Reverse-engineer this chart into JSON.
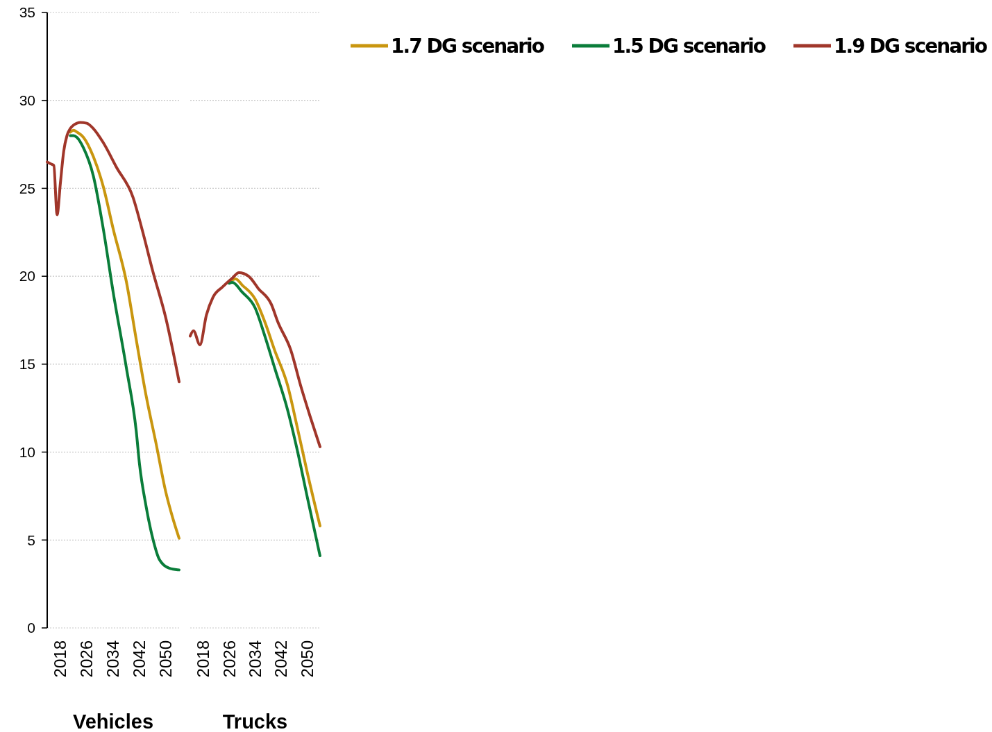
{
  "chart_data": [
    {
      "type": "line",
      "xlabel": "Vehicles",
      "xlim": [
        2014,
        2054
      ],
      "xticks": [
        2018,
        2026,
        2034,
        2042,
        2050
      ],
      "ylim": [
        0,
        35
      ],
      "yticks": [
        0,
        5,
        10,
        15,
        20,
        25,
        30,
        35
      ],
      "grid": "y",
      "legend": "top right",
      "line_style": "solid",
      "marker": "none",
      "series": [
        {
          "name": "1.7 DG scenario",
          "color": "#c9960f",
          "x": [
            2021,
            2022,
            2023,
            2025,
            2028,
            2031,
            2034,
            2038,
            2041,
            2044,
            2047,
            2050,
            2052,
            2054
          ],
          "values": [
            28.2,
            28.3,
            28.2,
            27.9,
            26.8,
            25.1,
            22.7,
            19.7,
            16.4,
            13.2,
            10.5,
            7.7,
            6.3,
            5.1
          ]
        },
        {
          "name": "1.5 DG scenario",
          "color": "#0a7d3a",
          "x": [
            2021,
            2022,
            2023,
            2025,
            2028,
            2031,
            2034,
            2038,
            2041,
            2042,
            2044,
            2046,
            2048,
            2051,
            2054
          ],
          "values": [
            28.0,
            28.0,
            27.9,
            27.3,
            25.7,
            22.7,
            19.1,
            14.8,
            11.2,
            9.3,
            6.9,
            5.1,
            3.9,
            3.4,
            3.3
          ]
        },
        {
          "name": "1.9 DG scenario",
          "color": "#a0362a",
          "x": [
            2014,
            2015,
            2016,
            2017,
            2018,
            2019,
            2020,
            2021,
            2022,
            2023,
            2024,
            2026,
            2028,
            2031,
            2035,
            2040,
            2043,
            2046,
            2050,
            2054
          ],
          "values": [
            26.5,
            26.4,
            26.3,
            23.5,
            25.3,
            27.1,
            28.0,
            28.4,
            28.6,
            28.7,
            28.75,
            28.7,
            28.4,
            27.6,
            26.2,
            24.5,
            22.5,
            20.3,
            17.6,
            14.0
          ]
        }
      ]
    },
    {
      "type": "line",
      "xlabel": "Trucks",
      "xlim": [
        2014,
        2054
      ],
      "xticks": [
        2018,
        2026,
        2034,
        2042,
        2050
      ],
      "ylim": [
        0,
        35
      ],
      "yticks": [
        0,
        5,
        10,
        15,
        20,
        25,
        30,
        35
      ],
      "grid": "y",
      "tick_labels": "x",
      "line_style": "solid",
      "marker": "none",
      "series": [
        {
          "color": "#c9960f",
          "x": [
            2026,
            2028,
            2030,
            2034,
            2037,
            2040,
            2044,
            2047,
            2050,
            2054
          ],
          "values": [
            19.7,
            19.85,
            19.5,
            18.7,
            17.4,
            15.8,
            13.8,
            11.4,
            8.9,
            5.8
          ]
        },
        {
          "color": "#0a7d3a",
          "x": [
            2026,
            2027,
            2030,
            2034,
            2037,
            2040,
            2044,
            2047,
            2050,
            2054
          ],
          "values": [
            19.6,
            19.65,
            19.1,
            18.2,
            16.6,
            14.8,
            12.4,
            10.1,
            7.5,
            4.1
          ]
        },
        {
          "color": "#a0362a",
          "x": [
            2014,
            2015,
            2017,
            2019,
            2021,
            2024,
            2027,
            2029,
            2032,
            2035,
            2039,
            2041,
            2045,
            2048,
            2051,
            2054
          ],
          "values": [
            16.6,
            16.9,
            16.1,
            17.8,
            18.8,
            19.4,
            19.9,
            20.2,
            20.0,
            19.3,
            18.4,
            17.4,
            15.8,
            13.8,
            12.0,
            10.3
          ]
        }
      ]
    }
  ]
}
